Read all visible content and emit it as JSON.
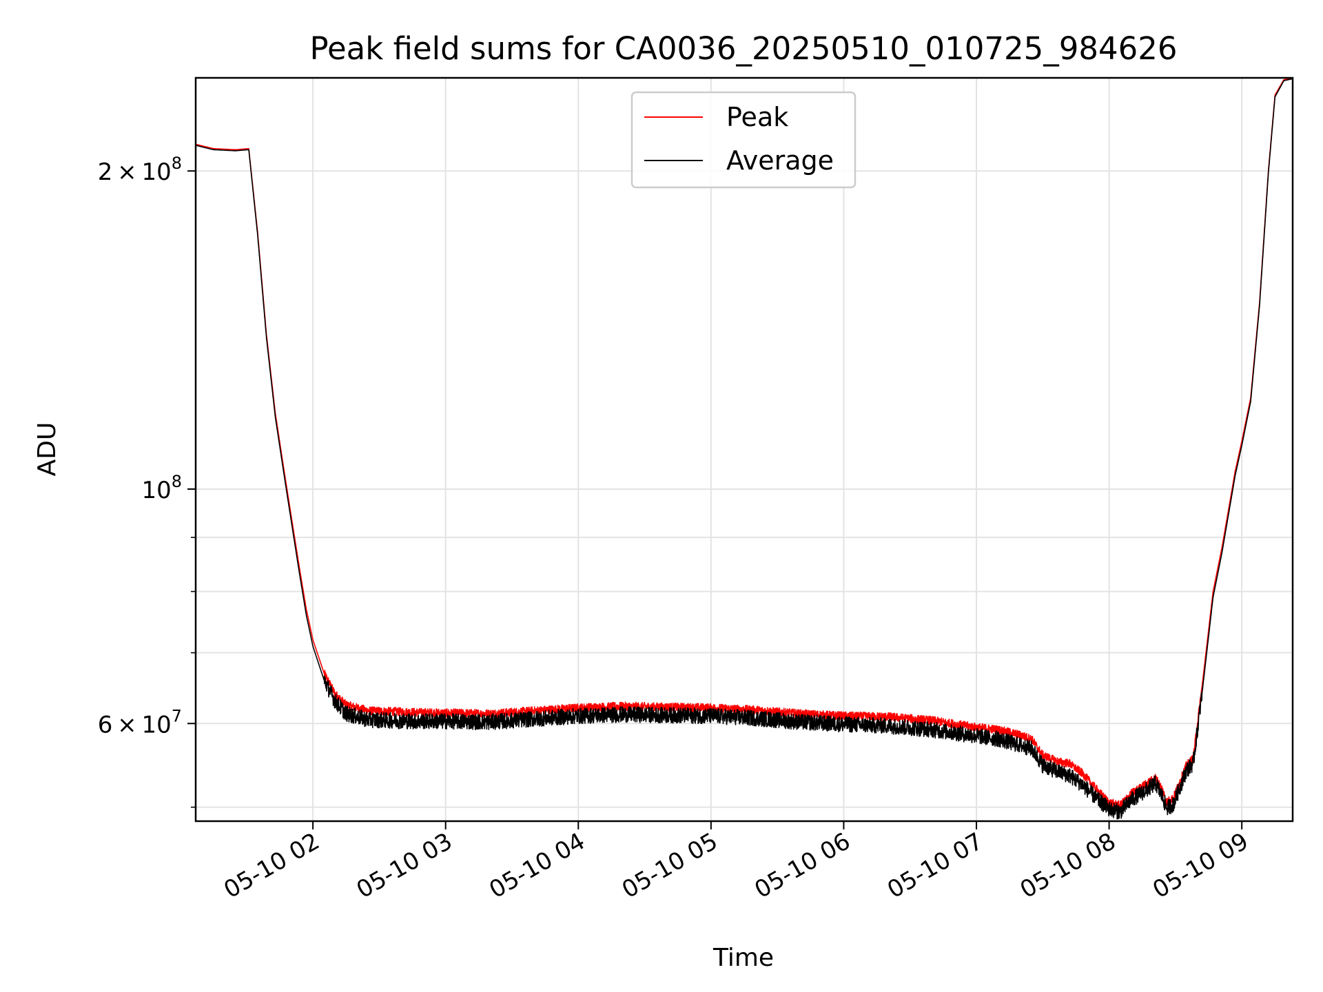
{
  "chart_data": {
    "type": "line",
    "title": "Peak field sums for CA0036_20250510_010725_984626",
    "xlabel": "Time",
    "ylabel": "ADU",
    "yscale": "log",
    "xlim": [
      "2025-05-10 01:07",
      "2025-05-10 09:23"
    ],
    "ylim": [
      48500000,
      245000000
    ],
    "grid": true,
    "legend_position": "top-center",
    "x_ticks": [
      {
        "t": "2025-05-10 02:00",
        "label": "05-10 02"
      },
      {
        "t": "2025-05-10 03:00",
        "label": "05-10 03"
      },
      {
        "t": "2025-05-10 04:00",
        "label": "05-10 04"
      },
      {
        "t": "2025-05-10 05:00",
        "label": "05-10 05"
      },
      {
        "t": "2025-05-10 06:00",
        "label": "05-10 06"
      },
      {
        "t": "2025-05-10 07:00",
        "label": "05-10 07"
      },
      {
        "t": "2025-05-10 08:00",
        "label": "05-10 08"
      },
      {
        "t": "2025-05-10 09:00",
        "label": "05-10 09"
      }
    ],
    "y_major_ticks": [
      {
        "v": 200000000,
        "mant": "2 × 10",
        "exp": "8"
      },
      {
        "v": 100000000,
        "mant": "10",
        "exp": "8"
      },
      {
        "v": 60000000,
        "mant": "6 × 10",
        "exp": "7"
      }
    ],
    "y_minor_ticks": [
      50000000,
      70000000,
      80000000,
      90000000
    ],
    "series": [
      {
        "name": "Peak",
        "color": "#ff0000",
        "points": [
          [
            "2025-05-10 01:07",
            212000000
          ],
          [
            "2025-05-10 01:15",
            210000000
          ],
          [
            "2025-05-10 01:25",
            209500000
          ],
          [
            "2025-05-10 01:31",
            210000000
          ],
          [
            "2025-05-10 01:35",
            175000000
          ],
          [
            "2025-05-10 01:39",
            140000000
          ],
          [
            "2025-05-10 01:43",
            118000000
          ],
          [
            "2025-05-10 01:47",
            104000000
          ],
          [
            "2025-05-10 01:51",
            92000000
          ],
          [
            "2025-05-10 01:54",
            84000000
          ],
          [
            "2025-05-10 01:57",
            77000000
          ],
          [
            "2025-05-10 02:00",
            72000000
          ],
          [
            "2025-05-10 02:05",
            67000000
          ],
          [
            "2025-05-10 02:10",
            64000000
          ],
          [
            "2025-05-10 02:15",
            62500000
          ],
          [
            "2025-05-10 02:25",
            61700000
          ],
          [
            "2025-05-10 02:45",
            61500000
          ],
          [
            "2025-05-10 03:00",
            61400000
          ],
          [
            "2025-05-10 03:20",
            61300000
          ],
          [
            "2025-05-10 03:40",
            61700000
          ],
          [
            "2025-05-10 04:00",
            62100000
          ],
          [
            "2025-05-10 04:20",
            62300000
          ],
          [
            "2025-05-10 04:40",
            62200000
          ],
          [
            "2025-05-10 05:00",
            62100000
          ],
          [
            "2025-05-10 05:20",
            61800000
          ],
          [
            "2025-05-10 05:40",
            61300000
          ],
          [
            "2025-05-10 06:00",
            61000000
          ],
          [
            "2025-05-10 06:20",
            60900000
          ],
          [
            "2025-05-10 06:40",
            60400000
          ],
          [
            "2025-05-10 07:00",
            59500000
          ],
          [
            "2025-05-10 07:10",
            59200000
          ],
          [
            "2025-05-10 07:20",
            58500000
          ],
          [
            "2025-05-10 07:25",
            58000000
          ],
          [
            "2025-05-10 07:30",
            56000000
          ],
          [
            "2025-05-10 07:37",
            55200000
          ],
          [
            "2025-05-10 07:42",
            55000000
          ],
          [
            "2025-05-10 07:48",
            53800000
          ],
          [
            "2025-05-10 07:55",
            51800000
          ],
          [
            "2025-05-10 08:00",
            50500000
          ],
          [
            "2025-05-10 08:05",
            50200000
          ],
          [
            "2025-05-10 08:10",
            51500000
          ],
          [
            "2025-05-10 08:18",
            52800000
          ],
          [
            "2025-05-10 08:21",
            53300000
          ],
          [
            "2025-05-10 08:24",
            52000000
          ],
          [
            "2025-05-10 08:26",
            50600000
          ],
          [
            "2025-05-10 08:29",
            51000000
          ],
          [
            "2025-05-10 08:35",
            54800000
          ],
          [
            "2025-05-10 08:38",
            55600000
          ],
          [
            "2025-05-10 08:42",
            65000000
          ],
          [
            "2025-05-10 08:47",
            80000000
          ],
          [
            "2025-05-10 08:51",
            88000000
          ],
          [
            "2025-05-10 08:57",
            104000000
          ],
          [
            "2025-05-10 09:00",
            111000000
          ],
          [
            "2025-05-10 09:04",
            122000000
          ],
          [
            "2025-05-10 09:08",
            150000000
          ],
          [
            "2025-05-10 09:12",
            200000000
          ],
          [
            "2025-05-10 09:15",
            236000000
          ],
          [
            "2025-05-10 09:19",
            244000000
          ],
          [
            "2025-05-10 09:23",
            245000000
          ]
        ]
      },
      {
        "name": "Average",
        "color": "#000000",
        "points": [
          [
            "2025-05-10 01:07",
            211500000
          ],
          [
            "2025-05-10 01:15",
            209500000
          ],
          [
            "2025-05-10 01:25",
            209000000
          ],
          [
            "2025-05-10 01:31",
            209500000
          ],
          [
            "2025-05-10 01:35",
            174000000
          ],
          [
            "2025-05-10 01:39",
            139000000
          ],
          [
            "2025-05-10 01:43",
            117000000
          ],
          [
            "2025-05-10 01:47",
            103000000
          ],
          [
            "2025-05-10 01:51",
            91000000
          ],
          [
            "2025-05-10 01:54",
            83000000
          ],
          [
            "2025-05-10 01:57",
            76000000
          ],
          [
            "2025-05-10 02:00",
            71000000
          ],
          [
            "2025-05-10 02:05",
            66000000
          ],
          [
            "2025-05-10 02:10",
            63000000
          ],
          [
            "2025-05-10 02:15",
            61300000
          ],
          [
            "2025-05-10 02:25",
            60500000
          ],
          [
            "2025-05-10 02:45",
            60300000
          ],
          [
            "2025-05-10 03:00",
            60300000
          ],
          [
            "2025-05-10 03:20",
            60200000
          ],
          [
            "2025-05-10 03:40",
            60600000
          ],
          [
            "2025-05-10 04:00",
            61000000
          ],
          [
            "2025-05-10 04:20",
            61200000
          ],
          [
            "2025-05-10 04:40",
            61100000
          ],
          [
            "2025-05-10 05:00",
            61000000
          ],
          [
            "2025-05-10 05:20",
            60700000
          ],
          [
            "2025-05-10 05:40",
            60200000
          ],
          [
            "2025-05-10 06:00",
            59900000
          ],
          [
            "2025-05-10 06:20",
            59700000
          ],
          [
            "2025-05-10 06:40",
            59200000
          ],
          [
            "2025-05-10 07:00",
            58400000
          ],
          [
            "2025-05-10 07:10",
            58000000
          ],
          [
            "2025-05-10 07:20",
            57200000
          ],
          [
            "2025-05-10 07:25",
            56800000
          ],
          [
            "2025-05-10 07:30",
            54800000
          ],
          [
            "2025-05-10 07:37",
            54000000
          ],
          [
            "2025-05-10 07:42",
            53600000
          ],
          [
            "2025-05-10 07:48",
            52500000
          ],
          [
            "2025-05-10 07:55",
            50800000
          ],
          [
            "2025-05-10 08:00",
            49800000
          ],
          [
            "2025-05-10 08:05",
            49500000
          ],
          [
            "2025-05-10 08:10",
            50800000
          ],
          [
            "2025-05-10 08:18",
            52100000
          ],
          [
            "2025-05-10 08:21",
            52700000
          ],
          [
            "2025-05-10 08:24",
            51200000
          ],
          [
            "2025-05-10 08:26",
            49900000
          ],
          [
            "2025-05-10 08:29",
            50300000
          ],
          [
            "2025-05-10 08:35",
            54200000
          ],
          [
            "2025-05-10 08:38",
            55000000
          ],
          [
            "2025-05-10 08:42",
            64000000
          ],
          [
            "2025-05-10 08:47",
            79000000
          ],
          [
            "2025-05-10 08:51",
            87000000
          ],
          [
            "2025-05-10 08:57",
            103000000
          ],
          [
            "2025-05-10 09:00",
            110000000
          ],
          [
            "2025-05-10 09:04",
            121000000
          ],
          [
            "2025-05-10 09:08",
            149000000
          ],
          [
            "2025-05-10 09:12",
            199000000
          ],
          [
            "2025-05-10 09:15",
            235000000
          ],
          [
            "2025-05-10 09:19",
            243500000
          ],
          [
            "2025-05-10 09:23",
            244500000
          ]
        ]
      }
    ]
  }
}
